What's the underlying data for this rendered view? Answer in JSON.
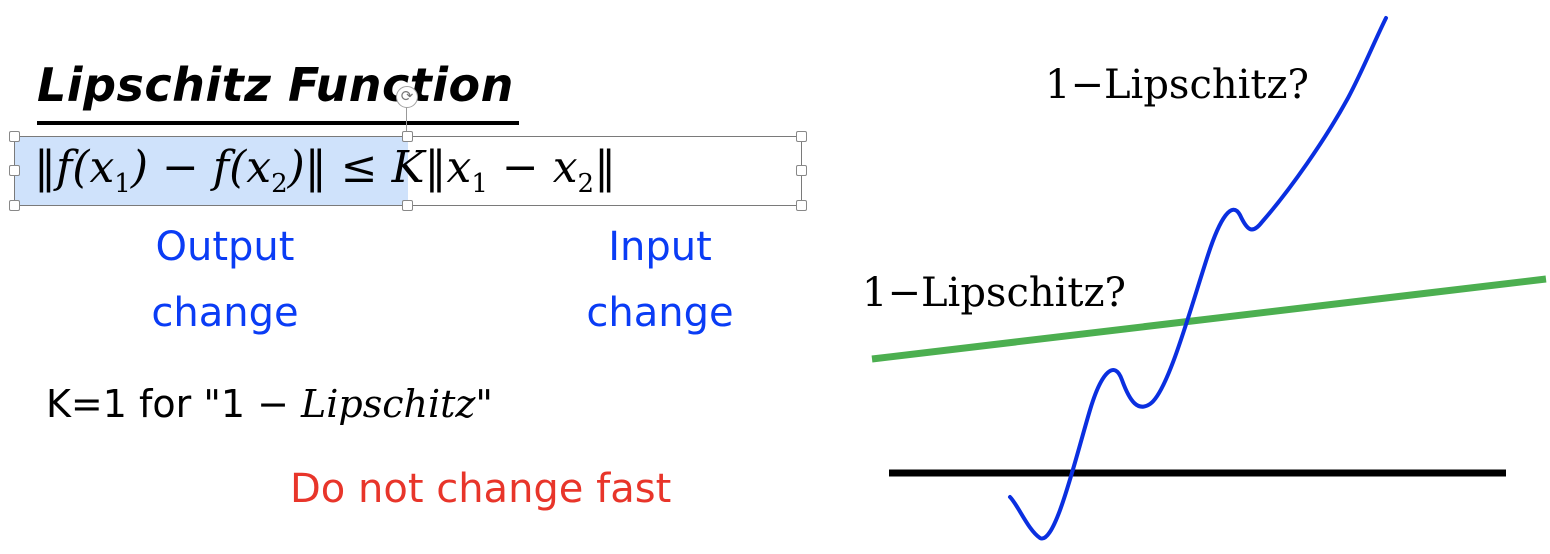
{
  "slide": {
    "title": "Lipschitz Function",
    "equation": {
      "lhs_open": "‖f(x",
      "lhs_sub1": "1",
      "lhs_mid": ") − f(x",
      "lhs_sub2": "2",
      "lhs_close": ")‖ ≤ K‖x",
      "rhs_sub1": "1",
      "rhs_mid": " − x",
      "rhs_sub2": "2",
      "rhs_close": "‖"
    },
    "output_label": {
      "line1": "Output",
      "line2": "change"
    },
    "input_label": {
      "line1": "Input",
      "line2": "change"
    },
    "k_line": {
      "prefix": "K=1 for \"1 − ",
      "italic": "Lipschitz",
      "suffix": "\""
    },
    "note": "Do not change fast"
  },
  "plot": {
    "label_top": "1−Lipschitz?",
    "label_middle": "1−Lipschitz?",
    "colors": {
      "blue_curve": "#0a2fe0",
      "green_line": "#4caf50",
      "black_axis": "#000000"
    }
  }
}
